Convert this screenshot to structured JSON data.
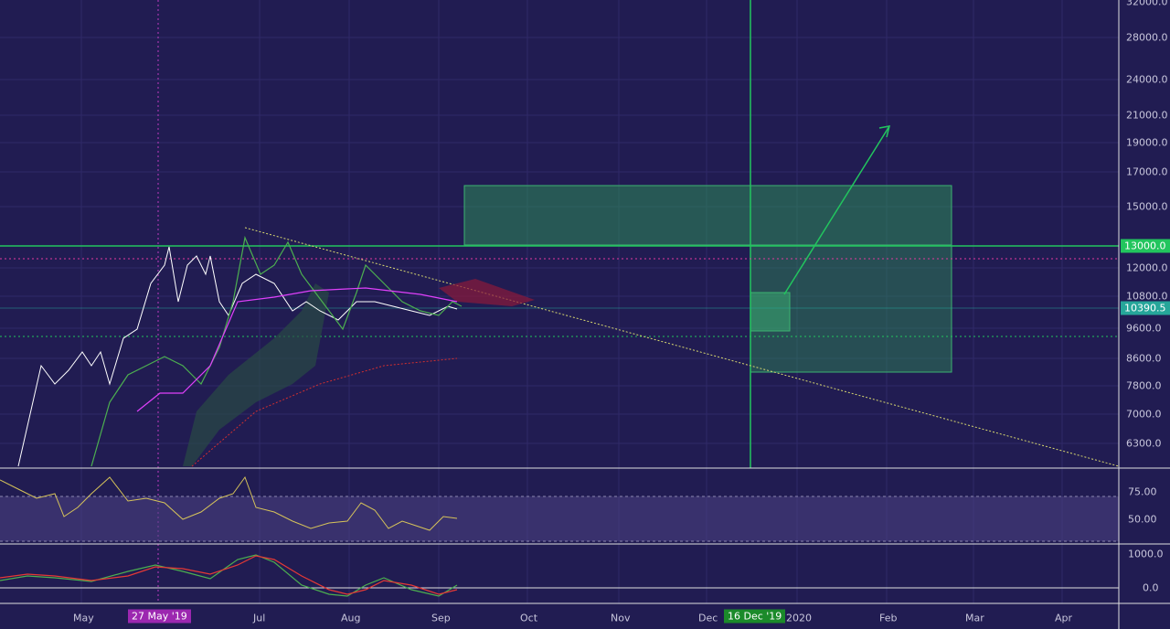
{
  "price_axis": {
    "labels": [
      "32000.0",
      "28000.0",
      "24000.0",
      "21000.0",
      "19000.0",
      "17000.0",
      "15000.0",
      "12000.0",
      "10800.0",
      "9600.0",
      "8600.0",
      "7800.0",
      "7000.0",
      "6300.0"
    ],
    "level_badge": "13000.0",
    "last_price_badge": "10390.5"
  },
  "rsi_axis": {
    "labels": [
      "75.00",
      "50.00"
    ]
  },
  "macd_axis": {
    "labels": [
      "1000.0",
      "0.0"
    ]
  },
  "time_axis": {
    "labels": [
      "May",
      "Jul",
      "Aug",
      "Sep",
      "Oct",
      "Nov",
      "Dec",
      "2020",
      "Feb",
      "Mar",
      "Apr"
    ],
    "crosshair_badge": "27 May '19",
    "marker_badge": "16 Dec '19"
  }
}
